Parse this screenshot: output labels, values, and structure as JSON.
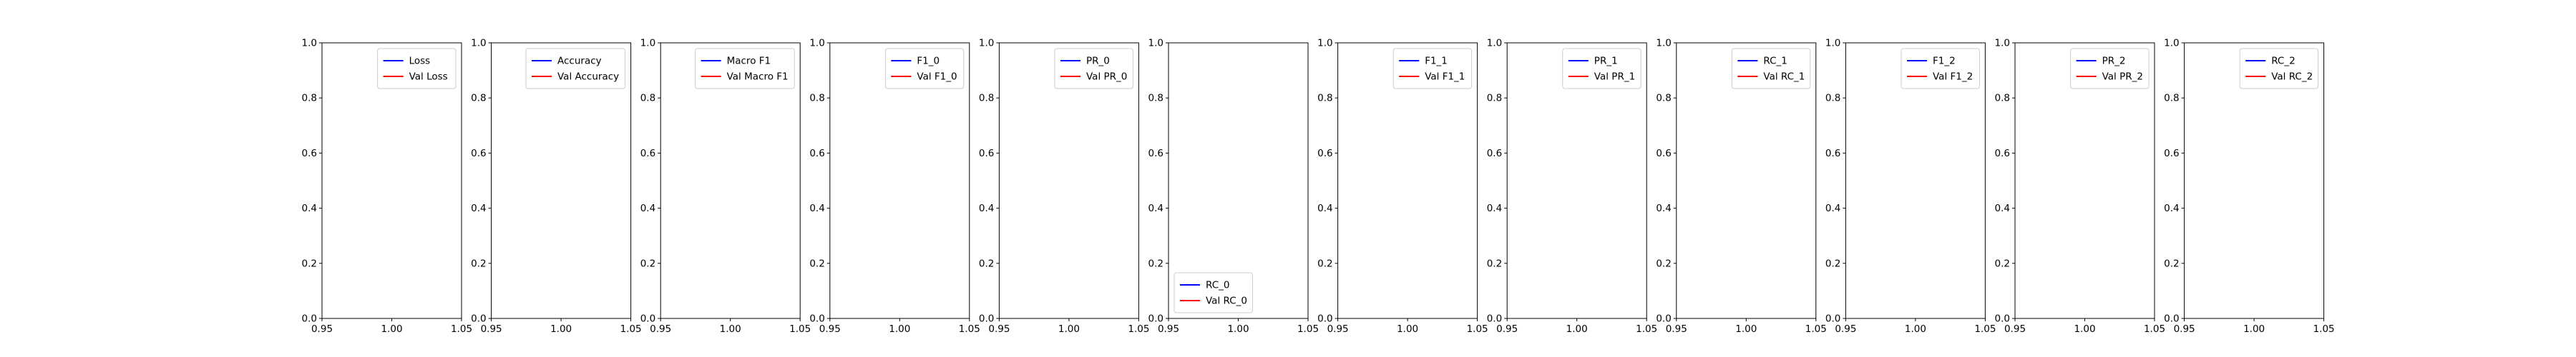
{
  "chart_data": [
    {
      "type": "line",
      "series": [
        {
          "name": "Loss",
          "values": [],
          "color": "#0000ff"
        },
        {
          "name": "Val Loss",
          "values": [],
          "color": "#ff0000"
        }
      ],
      "xlim": [
        0.95,
        1.05
      ],
      "ylim": [
        0.0,
        1.0
      ],
      "x_ticks": [
        "0.95",
        "1.00",
        "1.05"
      ],
      "y_ticks": [
        "0.0",
        "0.2",
        "0.4",
        "0.6",
        "0.8",
        "1.0"
      ],
      "grid": false,
      "legend": "upper right"
    },
    {
      "type": "line",
      "series": [
        {
          "name": "Accuracy",
          "values": [],
          "color": "#0000ff"
        },
        {
          "name": "Val Accuracy",
          "values": [],
          "color": "#ff0000"
        }
      ],
      "xlim": [
        0.95,
        1.05
      ],
      "ylim": [
        0.0,
        1.0
      ],
      "x_ticks": [
        "0.95",
        "1.00",
        "1.05"
      ],
      "y_ticks": [
        "0.0",
        "0.2",
        "0.4",
        "0.6",
        "0.8",
        "1.0"
      ],
      "grid": false,
      "legend": "upper right"
    },
    {
      "type": "line",
      "series": [
        {
          "name": "Macro F1",
          "values": [],
          "color": "#0000ff"
        },
        {
          "name": "Val Macro F1",
          "values": [],
          "color": "#ff0000"
        }
      ],
      "xlim": [
        0.95,
        1.05
      ],
      "ylim": [
        0.0,
        1.0
      ],
      "x_ticks": [
        "0.95",
        "1.00",
        "1.05"
      ],
      "y_ticks": [
        "0.0",
        "0.2",
        "0.4",
        "0.6",
        "0.8",
        "1.0"
      ],
      "grid": false,
      "legend": "upper right"
    },
    {
      "type": "line",
      "series": [
        {
          "name": "F1_0",
          "values": [],
          "color": "#0000ff"
        },
        {
          "name": "Val F1_0",
          "values": [],
          "color": "#ff0000"
        }
      ],
      "xlim": [
        0.95,
        1.05
      ],
      "ylim": [
        0.0,
        1.0
      ],
      "x_ticks": [
        "0.95",
        "1.00",
        "1.05"
      ],
      "y_ticks": [
        "0.0",
        "0.2",
        "0.4",
        "0.6",
        "0.8",
        "1.0"
      ],
      "grid": false,
      "legend": "upper right"
    },
    {
      "type": "line",
      "series": [
        {
          "name": "PR_0",
          "values": [],
          "color": "#0000ff"
        },
        {
          "name": "Val PR_0",
          "values": [],
          "color": "#ff0000"
        }
      ],
      "xlim": [
        0.95,
        1.05
      ],
      "ylim": [
        0.0,
        1.0
      ],
      "x_ticks": [
        "0.95",
        "1.00",
        "1.05"
      ],
      "y_ticks": [
        "0.0",
        "0.2",
        "0.4",
        "0.6",
        "0.8",
        "1.0"
      ],
      "grid": false,
      "legend": "upper right"
    },
    {
      "type": "line",
      "series": [
        {
          "name": "RC_0",
          "values": [],
          "color": "#0000ff"
        },
        {
          "name": "Val RC_0",
          "values": [],
          "color": "#ff0000"
        }
      ],
      "xlim": [
        0.95,
        1.05
      ],
      "ylim": [
        0.0,
        1.0
      ],
      "x_ticks": [
        "0.95",
        "1.00",
        "1.05"
      ],
      "y_ticks": [
        "0.0",
        "0.2",
        "0.4",
        "0.6",
        "0.8",
        "1.0"
      ],
      "grid": false,
      "legend": "lower left"
    },
    {
      "type": "line",
      "series": [
        {
          "name": "F1_1",
          "values": [],
          "color": "#0000ff"
        },
        {
          "name": "Val F1_1",
          "values": [],
          "color": "#ff0000"
        }
      ],
      "xlim": [
        0.95,
        1.05
      ],
      "ylim": [
        0.0,
        1.0
      ],
      "x_ticks": [
        "0.95",
        "1.00",
        "1.05"
      ],
      "y_ticks": [
        "0.0",
        "0.2",
        "0.4",
        "0.6",
        "0.8",
        "1.0"
      ],
      "grid": false,
      "legend": "upper right"
    },
    {
      "type": "line",
      "series": [
        {
          "name": "PR_1",
          "values": [],
          "color": "#0000ff"
        },
        {
          "name": "Val PR_1",
          "values": [],
          "color": "#ff0000"
        }
      ],
      "xlim": [
        0.95,
        1.05
      ],
      "ylim": [
        0.0,
        1.0
      ],
      "x_ticks": [
        "0.95",
        "1.00",
        "1.05"
      ],
      "y_ticks": [
        "0.0",
        "0.2",
        "0.4",
        "0.6",
        "0.8",
        "1.0"
      ],
      "grid": false,
      "legend": "upper right"
    },
    {
      "type": "line",
      "series": [
        {
          "name": "RC_1",
          "values": [],
          "color": "#0000ff"
        },
        {
          "name": "Val RC_1",
          "values": [],
          "color": "#ff0000"
        }
      ],
      "xlim": [
        0.95,
        1.05
      ],
      "ylim": [
        0.0,
        1.0
      ],
      "x_ticks": [
        "0.95",
        "1.00",
        "1.05"
      ],
      "y_ticks": [
        "0.0",
        "0.2",
        "0.4",
        "0.6",
        "0.8",
        "1.0"
      ],
      "grid": false,
      "legend": "upper right"
    },
    {
      "type": "line",
      "series": [
        {
          "name": "F1_2",
          "values": [],
          "color": "#0000ff"
        },
        {
          "name": "Val F1_2",
          "values": [],
          "color": "#ff0000"
        }
      ],
      "xlim": [
        0.95,
        1.05
      ],
      "ylim": [
        0.0,
        1.0
      ],
      "x_ticks": [
        "0.95",
        "1.00",
        "1.05"
      ],
      "y_ticks": [
        "0.0",
        "0.2",
        "0.4",
        "0.6",
        "0.8",
        "1.0"
      ],
      "grid": false,
      "legend": "upper right"
    },
    {
      "type": "line",
      "series": [
        {
          "name": "PR_2",
          "values": [],
          "color": "#0000ff"
        },
        {
          "name": "Val PR_2",
          "values": [],
          "color": "#ff0000"
        }
      ],
      "xlim": [
        0.95,
        1.05
      ],
      "ylim": [
        0.0,
        1.0
      ],
      "x_ticks": [
        "0.95",
        "1.00",
        "1.05"
      ],
      "y_ticks": [
        "0.0",
        "0.2",
        "0.4",
        "0.6",
        "0.8",
        "1.0"
      ],
      "grid": false,
      "legend": "upper right"
    },
    {
      "type": "line",
      "series": [
        {
          "name": "RC_2",
          "values": [],
          "color": "#0000ff"
        },
        {
          "name": "Val RC_2",
          "values": [],
          "color": "#ff0000"
        }
      ],
      "xlim": [
        0.95,
        1.05
      ],
      "ylim": [
        0.0,
        1.0
      ],
      "x_ticks": [
        "0.95",
        "1.00",
        "1.05"
      ],
      "y_ticks": [
        "0.0",
        "0.2",
        "0.4",
        "0.6",
        "0.8",
        "1.0"
      ],
      "grid": false,
      "legend": "upper right"
    }
  ]
}
